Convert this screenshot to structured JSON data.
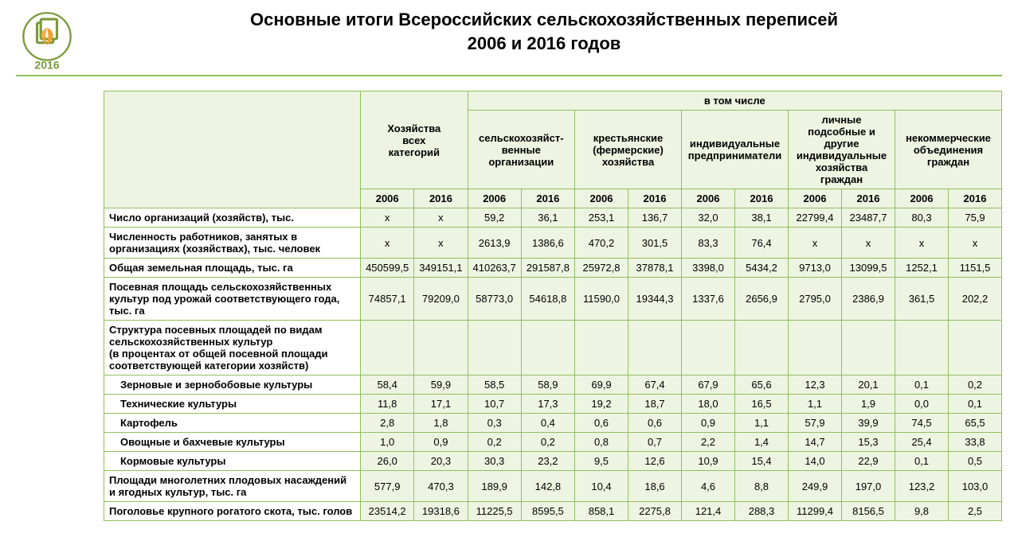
{
  "title": {
    "line1": "Основные итоги Всероссийских сельскохозяйственных переписей",
    "line2": "2006 и 2016 годов"
  },
  "logo": {
    "year": "2016",
    "ring_color": "#7a9a3b",
    "leaf_color": "#f0a030"
  },
  "colors": {
    "border": "#8fbf5f",
    "header_bg": "#eef4e2",
    "cell_bg": "#eef4e2",
    "label_bg": "#ffffff",
    "text": "#000000"
  },
  "fonts": {
    "title_size_pt": 17,
    "table_size_pt": 10
  },
  "table": {
    "col1_header": "Хозяйства всех категорий",
    "super_header": "в том числе",
    "group_headers": [
      "сельскохозяйст-венные организации",
      "крестьянские (фермерские) хозяйства",
      "индивидуальные предприниматели",
      "личные подсобные и другие индивидуальные хозяйства граждан",
      "некоммерческие объединения граждан"
    ],
    "years": [
      "2006",
      "2016"
    ],
    "rows": [
      {
        "label": "Число организаций (хозяйств), тыс.",
        "indent": 0,
        "values": [
          "х",
          "х",
          "59,2",
          "36,1",
          "253,1",
          "136,7",
          "32,0",
          "38,1",
          "22799,4",
          "23487,7",
          "80,3",
          "75,9"
        ]
      },
      {
        "label": "Численность работников, занятых в организациях (хозяйствах), тыс. человек",
        "indent": 0,
        "values": [
          "х",
          "х",
          "2613,9",
          "1386,6",
          "470,2",
          "301,5",
          "83,3",
          "76,4",
          "х",
          "х",
          "х",
          "х"
        ]
      },
      {
        "label": "Общая земельная площадь, тыс. га",
        "indent": 0,
        "values": [
          "450599,5",
          "349151,1",
          "410263,7",
          "291587,8",
          "25972,8",
          "37878,1",
          "3398,0",
          "5434,2",
          "9713,0",
          "13099,5",
          "1252,1",
          "1151,5"
        ]
      },
      {
        "label": "Посевная площадь сельскохозяйственных культур под урожай соответствующего года, тыс. га",
        "indent": 0,
        "values": [
          "74857,1",
          "79209,0",
          "58773,0",
          "54618,8",
          "11590,0",
          "19344,3",
          "1337,6",
          "2656,9",
          "2795,0",
          "2386,9",
          "361,5",
          "202,2"
        ]
      },
      {
        "label": "Структура посевных площадей по видам сельскохозяйственных культур\n(в процентах от общей посевной площади соответствующей категории хозяйств)",
        "indent": 0,
        "values": [
          "",
          "",
          "",
          "",
          "",
          "",
          "",
          "",
          "",
          "",
          "",
          ""
        ]
      },
      {
        "label": "Зерновые и зернобобовые культуры",
        "indent": 1,
        "values": [
          "58,4",
          "59,9",
          "58,5",
          "58,9",
          "69,9",
          "67,4",
          "67,9",
          "65,6",
          "12,3",
          "20,1",
          "0,1",
          "0,2"
        ]
      },
      {
        "label": "Технические культуры",
        "indent": 1,
        "values": [
          "11,8",
          "17,1",
          "10,7",
          "17,3",
          "19,2",
          "18,7",
          "18,0",
          "16,5",
          "1,1",
          "1,9",
          "0,0",
          "0,1"
        ]
      },
      {
        "label": "Картофель",
        "indent": 1,
        "values": [
          "2,8",
          "1,8",
          "0,3",
          "0,4",
          "0,6",
          "0,6",
          "0,9",
          "1,1",
          "57,9",
          "39,9",
          "74,5",
          "65,5"
        ]
      },
      {
        "label": "Овощные и бахчевые культуры",
        "indent": 1,
        "values": [
          "1,0",
          "0,9",
          "0,2",
          "0,2",
          "0,8",
          "0,7",
          "2,2",
          "1,4",
          "14,7",
          "15,3",
          "25,4",
          "33,8"
        ]
      },
      {
        "label": "Кормовые культуры",
        "indent": 1,
        "values": [
          "26,0",
          "20,3",
          "30,3",
          "23,2",
          "9,5",
          "12,6",
          "10,9",
          "15,4",
          "14,0",
          "22,9",
          "0,1",
          "0,5"
        ]
      },
      {
        "label": "Площади многолетних плодовых насаждений и ягодных культур, тыс. га",
        "indent": 0,
        "values": [
          "577,9",
          "470,3",
          "189,9",
          "142,8",
          "10,4",
          "18,6",
          "4,6",
          "8,8",
          "249,9",
          "197,0",
          "123,2",
          "103,0"
        ]
      },
      {
        "label": "Поголовье крупного рогатого скота, тыс. голов",
        "indent": 0,
        "values": [
          "23514,2",
          "19318,6",
          "11225,5",
          "8595,5",
          "858,1",
          "2275,8",
          "121,4",
          "288,3",
          "11299,4",
          "8156,5",
          "9,8",
          "2,5"
        ]
      }
    ]
  }
}
